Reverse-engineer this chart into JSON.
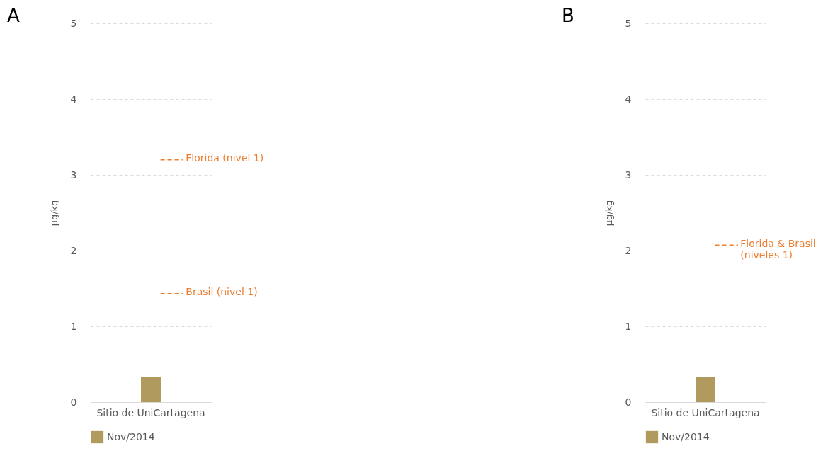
{
  "chart_data": [
    {
      "type": "bar",
      "title": "A",
      "categories": [
        "Sitio de UniCartagena"
      ],
      "series": [
        {
          "name": "Nov/2014",
          "color": "#b09a5e",
          "values": [
            0.33
          ]
        }
      ],
      "ylabel": "µg/kg",
      "ylim": [
        0,
        5
      ],
      "yticks": [
        0,
        1,
        2,
        3,
        4,
        5
      ],
      "grid": "y",
      "legend": "bottom",
      "ref_lines": [
        {
          "axis": "y",
          "value": 3.2,
          "label": "Florida (nivel 1)",
          "color": "#ed7d31",
          "line_style": "dashed"
        },
        {
          "axis": "y",
          "value": 1.43,
          "label": "Brasil (nivel 1)",
          "color": "#ed7d31",
          "line_style": "dashed"
        }
      ]
    },
    {
      "type": "bar",
      "title": "B",
      "categories": [
        "Sitio de UniCartagena"
      ],
      "series": [
        {
          "name": "Nov/2014",
          "color": "#b09a5e",
          "values": [
            0.33
          ]
        }
      ],
      "ylabel": "µg/kg",
      "ylim": [
        0,
        5
      ],
      "yticks": [
        0,
        1,
        2,
        3,
        4,
        5
      ],
      "grid": "y",
      "legend": "bottom",
      "ref_lines": [
        {
          "axis": "y",
          "value": 2.07,
          "label": "Florida & Brasil\n(niveles 1)",
          "color": "#ed7d31",
          "line_style": "dashed"
        }
      ]
    }
  ]
}
